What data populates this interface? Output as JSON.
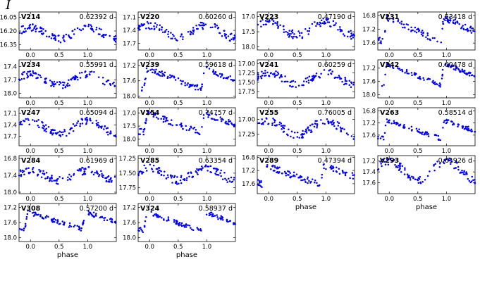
{
  "figure": {
    "band_label": "I",
    "xlabel": "phase",
    "xticks": [
      "0.0",
      "0.5",
      "1.0"
    ],
    "point_color": "#0000ee"
  },
  "chart_data": [
    {
      "type": "scatter",
      "star": "V214",
      "period": "0.62392 d",
      "ylim": [
        16.41,
        15.99
      ],
      "yticks": [
        "16.05",
        "16.20",
        "16.35"
      ],
      "ytick_values": [
        16.05,
        16.2,
        16.35
      ],
      "curve": {
        "base": 16.29,
        "amp": 0.13,
        "shape": "sin",
        "noise": 0.04
      },
      "show_xlabel": false
    },
    {
      "type": "scatter",
      "star": "V220",
      "period": "0.60260 d",
      "ylim": [
        17.85,
        16.98
      ],
      "yticks": [
        "17.1",
        "17.4",
        "17.7"
      ],
      "ytick_values": [
        17.1,
        17.4,
        17.7
      ],
      "curve": {
        "base": 17.58,
        "amp": 0.3,
        "shape": "sin",
        "noise": 0.09
      },
      "show_xlabel": false
    },
    {
      "type": "scatter",
      "star": "V223",
      "period": "0.47190 d",
      "ylim": [
        18.1,
        16.85
      ],
      "yticks": [
        "17.0",
        "17.5",
        "18.0"
      ],
      "ytick_values": [
        17.0,
        17.5,
        18.0
      ],
      "curve": {
        "base": 17.62,
        "amp": 0.45,
        "shape": "sin",
        "noise": 0.14
      },
      "show_xlabel": false
    },
    {
      "type": "scatter",
      "star": "V231",
      "period": "0.53418 d",
      "ylim": [
        17.8,
        16.7
      ],
      "yticks": [
        "16.8",
        "17.2",
        "17.6"
      ],
      "ytick_values": [
        16.8,
        17.2,
        17.6
      ],
      "curve": {
        "base": 17.6,
        "amp": 0.7,
        "shape": "saw",
        "noise": 0.09
      },
      "show_xlabel": false
    },
    {
      "type": "scatter",
      "star": "V234",
      "period": "0.55991 d",
      "ylim": [
        18.1,
        17.25
      ],
      "yticks": [
        "17.4",
        "17.7",
        "18.0"
      ],
      "ytick_values": [
        17.4,
        17.7,
        18.0
      ],
      "curve": {
        "base": 17.82,
        "amp": 0.25,
        "shape": "sin",
        "noise": 0.08
      },
      "show_xlabel": false
    },
    {
      "type": "scatter",
      "star": "V239",
      "period": "0.59618 d",
      "ylim": [
        18.05,
        17.05
      ],
      "yticks": [
        "17.2",
        "17.6",
        "18.0"
      ],
      "ytick_values": [
        17.2,
        17.6,
        18.0
      ],
      "curve": {
        "base": 17.85,
        "amp": 0.55,
        "shape": "saw",
        "noise": 0.07
      },
      "show_xlabel": false
    },
    {
      "type": "scatter",
      "star": "V241",
      "period": "0.60259 d",
      "ylim": [
        17.92,
        16.9
      ],
      "yticks": [
        "17.00",
        "17.25",
        "17.50",
        "17.75"
      ],
      "ytick_values": [
        17.0,
        17.25,
        17.5,
        17.75
      ],
      "curve": {
        "base": 17.55,
        "amp": 0.3,
        "shape": "sin",
        "noise": 0.1
      },
      "show_xlabel": false
    },
    {
      "type": "scatter",
      "star": "V242",
      "period": "0.60478 d",
      "ylim": [
        18.1,
        16.95
      ],
      "yticks": [
        "17.2",
        "17.6",
        "18.0"
      ],
      "ytick_values": [
        17.2,
        17.6,
        18.0
      ],
      "curve": {
        "base": 17.75,
        "amp": 0.65,
        "shape": "saw",
        "noise": 0.06
      },
      "show_xlabel": false
    },
    {
      "type": "scatter",
      "star": "V247",
      "period": "0.65094 d",
      "ylim": [
        17.95,
        16.95
      ],
      "yticks": [
        "17.1",
        "17.4",
        "17.7"
      ],
      "ytick_values": [
        17.1,
        17.4,
        17.7
      ],
      "curve": {
        "base": 17.65,
        "amp": 0.35,
        "shape": "sin",
        "noise": 0.1
      },
      "show_xlabel": false
    },
    {
      "type": "scatter",
      "star": "V254",
      "period": "0.74757 d",
      "ylim": [
        18.25,
        16.8
      ],
      "yticks": [
        "17.0",
        "17.5",
        "18.0"
      ],
      "ytick_values": [
        17.0,
        17.5,
        18.0
      ],
      "curve": {
        "base": 17.8,
        "amp": 0.75,
        "shape": "saw",
        "noise": 0.12
      },
      "show_xlabel": false
    },
    {
      "type": "scatter",
      "star": "V255",
      "period": "0.76005 d",
      "ylim": [
        17.45,
        16.8
      ],
      "yticks": [
        "17.00",
        "17.25"
      ],
      "ytick_values": [
        17.0,
        17.25
      ],
      "curve": {
        "base": 17.27,
        "amp": 0.25,
        "shape": "sin",
        "noise": 0.07
      },
      "show_xlabel": false
    },
    {
      "type": "scatter",
      "star": "V263",
      "period": "0.58514 d",
      "ylim": [
        17.95,
        16.7
      ],
      "yticks": [
        "16.8",
        "17.2",
        "17.6"
      ],
      "ytick_values": [
        16.8,
        17.2,
        17.6
      ],
      "curve": {
        "base": 17.75,
        "amp": 0.6,
        "shape": "saw",
        "noise": 0.07
      },
      "show_xlabel": false
    },
    {
      "type": "scatter",
      "star": "V284",
      "period": "0.61969 d",
      "ylim": [
        18.05,
        16.7
      ],
      "yticks": [
        "16.8",
        "17.4",
        "18.0"
      ],
      "ytick_values": [
        16.8,
        17.4,
        18.0
      ],
      "curve": {
        "base": 17.58,
        "amp": 0.35,
        "shape": "sin",
        "noise": 0.14
      },
      "show_xlabel": false
    },
    {
      "type": "scatter",
      "star": "V285",
      "period": "0.63354 d",
      "ylim": [
        17.85,
        17.2
      ],
      "yticks": [
        "17.25",
        "17.50",
        "17.75"
      ],
      "ytick_values": [
        17.25,
        17.5,
        17.75
      ],
      "curve": {
        "base": 17.62,
        "amp": 0.2,
        "shape": "sin",
        "noise": 0.07
      },
      "show_xlabel": false
    },
    {
      "type": "scatter",
      "star": "V289",
      "period": "0.47394 d",
      "ylim": [
        17.9,
        16.75
      ],
      "yticks": [
        "16.8",
        "17.2",
        "17.6"
      ],
      "ytick_values": [
        16.8,
        17.2,
        17.6
      ],
      "curve": {
        "base": 17.65,
        "amp": 0.55,
        "shape": "saw",
        "noise": 0.1
      },
      "show_xlabel": true
    },
    {
      "type": "scatter",
      "star": "V293",
      "period": "0.61926 d",
      "ylim": [
        17.8,
        17.1
      ],
      "yticks": [
        "17.2",
        "17.4",
        "17.6"
      ],
      "ytick_values": [
        17.2,
        17.4,
        17.6
      ],
      "curve": {
        "base": 17.55,
        "amp": 0.35,
        "shape": "sin",
        "noise": 0.08
      },
      "show_xlabel": true
    },
    {
      "type": "scatter",
      "star": "V308",
      "period": "0.57200 d",
      "ylim": [
        18.1,
        17.1
      ],
      "yticks": [
        "17.2",
        "17.6",
        "18.0"
      ],
      "ytick_values": [
        17.2,
        17.6,
        18.0
      ],
      "curve": {
        "base": 17.8,
        "amp": 0.45,
        "shape": "saw",
        "noise": 0.06
      },
      "show_xlabel": true
    },
    {
      "type": "scatter",
      "star": "V324",
      "period": "0.58937 d",
      "ylim": [
        18.1,
        17.1
      ],
      "yticks": [
        "17.2",
        "17.6",
        "18.0"
      ],
      "ytick_values": [
        17.2,
        17.6,
        18.0
      ],
      "curve": {
        "base": 17.85,
        "amp": 0.5,
        "shape": "saw",
        "noise": 0.06
      },
      "show_xlabel": true
    }
  ]
}
